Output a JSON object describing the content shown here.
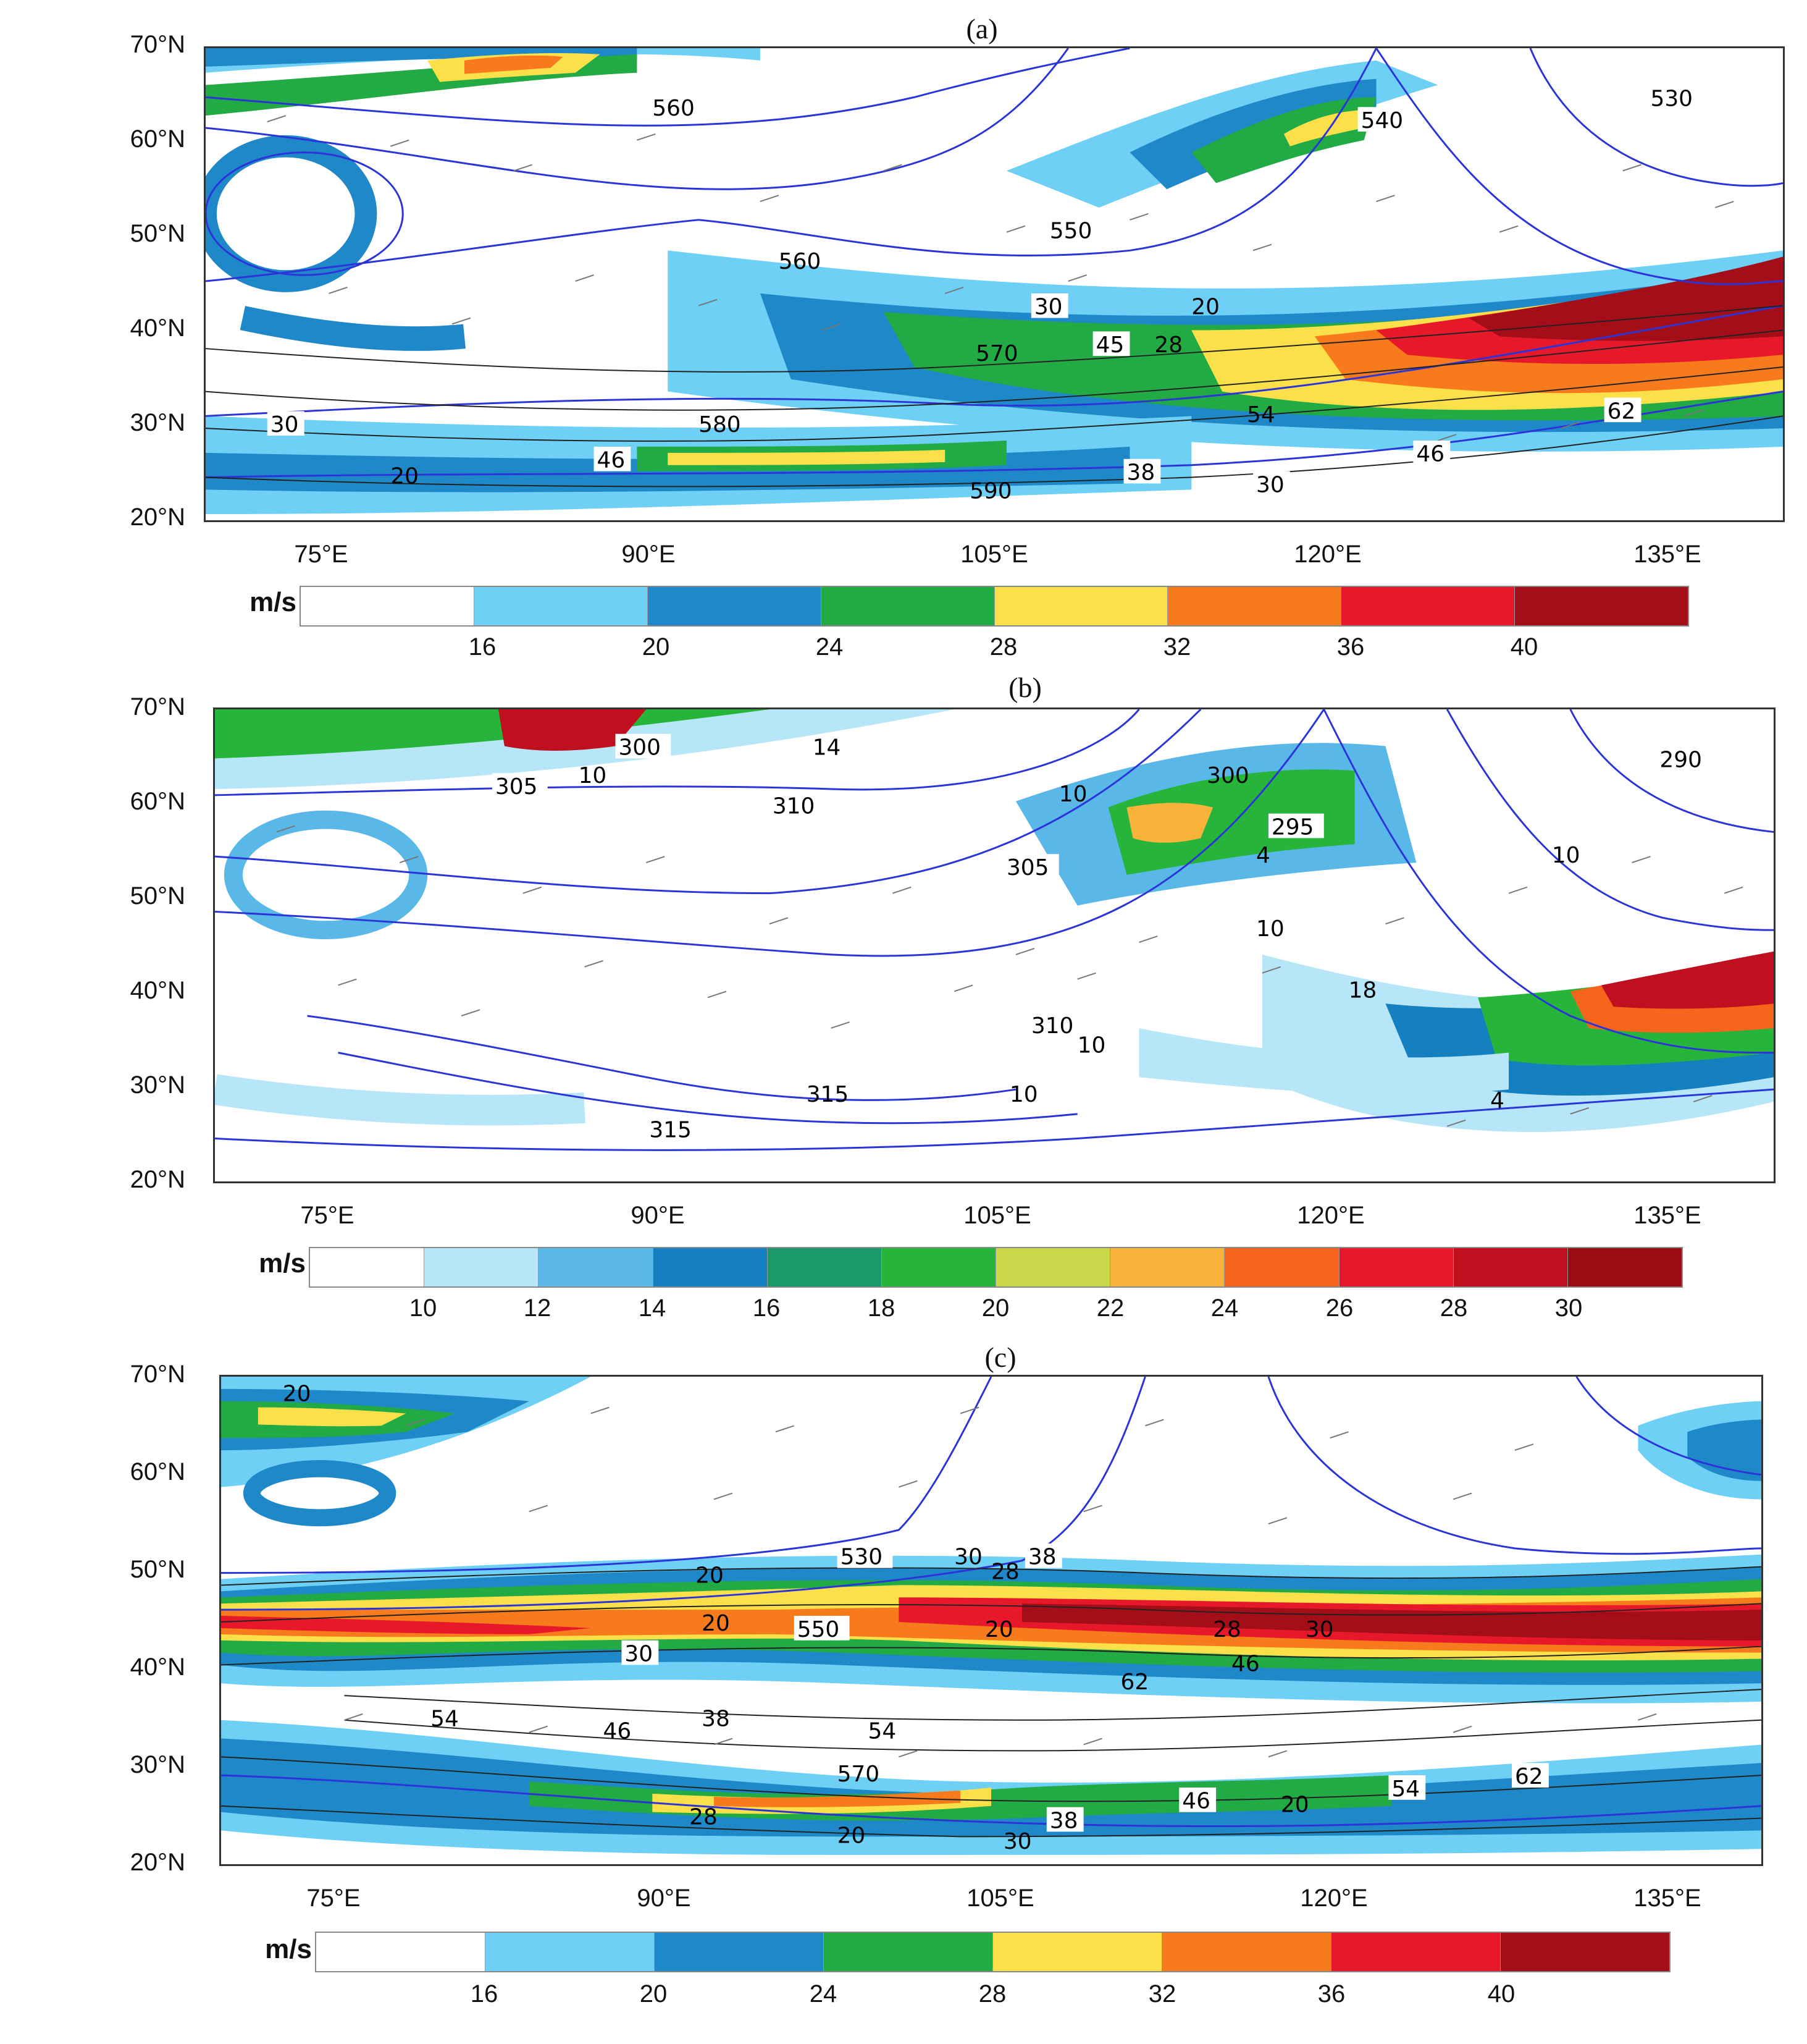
{
  "panels": [
    {
      "title": "(a)",
      "y_ticks": [
        "70°N",
        "60°N",
        "50°N",
        "40°N",
        "30°N",
        "20°N"
      ],
      "x_ticks": [
        "75°E",
        "90°E",
        "105°E",
        "120°E",
        "135°E"
      ],
      "colorbar": {
        "unit": "m/s",
        "ticks": [
          "16",
          "20",
          "24",
          "28",
          "32",
          "36",
          "40"
        ],
        "colors": [
          "#ffffff",
          "#6fd0f6",
          "#1e88c8",
          "#22aa44",
          "#fce04a",
          "#f77a1c",
          "#e8182b",
          "#a30e18"
        ]
      },
      "contour_labels": [
        "560",
        "540",
        "530",
        "560",
        "550",
        "30",
        "20",
        "45",
        "28",
        "570",
        "30",
        "580",
        "54",
        "62",
        "46",
        "20",
        "38",
        "590",
        "30",
        "46"
      ]
    },
    {
      "title": "(b)",
      "y_ticks": [
        "70°N",
        "60°N",
        "50°N",
        "40°N",
        "30°N",
        "20°N"
      ],
      "x_ticks": [
        "75°E",
        "90°E",
        "105°E",
        "120°E",
        "135°E"
      ],
      "colorbar": {
        "unit": "m/s",
        "ticks": [
          "10",
          "12",
          "14",
          "16",
          "18",
          "20",
          "22",
          "24",
          "26",
          "28",
          "30"
        ],
        "colors": [
          "#ffffff",
          "#b6e6f8",
          "#5ab8e8",
          "#1480c0",
          "#1a9a6a",
          "#26b43a",
          "#c8d848",
          "#f8b43a",
          "#f7651c",
          "#e8182b",
          "#c01020",
          "#9a0c14"
        ]
      },
      "contour_labels": [
        "300",
        "14",
        "305",
        "10",
        "310",
        "300",
        "290",
        "10",
        "295",
        "4",
        "305",
        "10",
        "10",
        "18",
        "310",
        "10",
        "315",
        "315",
        "10",
        "4"
      ]
    },
    {
      "title": "(c)",
      "y_ticks": [
        "70°N",
        "60°N",
        "50°N",
        "40°N",
        "30°N",
        "20°N"
      ],
      "x_ticks": [
        "75°E",
        "90°E",
        "105°E",
        "120°E",
        "135°E"
      ],
      "colorbar": {
        "unit": "m/s",
        "ticks": [
          "16",
          "20",
          "24",
          "28",
          "32",
          "36",
          "40"
        ],
        "colors": [
          "#ffffff",
          "#6fd0f6",
          "#1e88c8",
          "#22aa44",
          "#fce04a",
          "#f77a1c",
          "#e8182b",
          "#a30e18"
        ]
      },
      "contour_labels": [
        "20",
        "530",
        "30",
        "38",
        "28",
        "20",
        "550",
        "20",
        "30",
        "20",
        "28",
        "30",
        "46",
        "62",
        "54",
        "38",
        "46",
        "54",
        "570",
        "28",
        "20",
        "38",
        "30",
        "46",
        "20",
        "54",
        "62"
      ]
    }
  ]
}
